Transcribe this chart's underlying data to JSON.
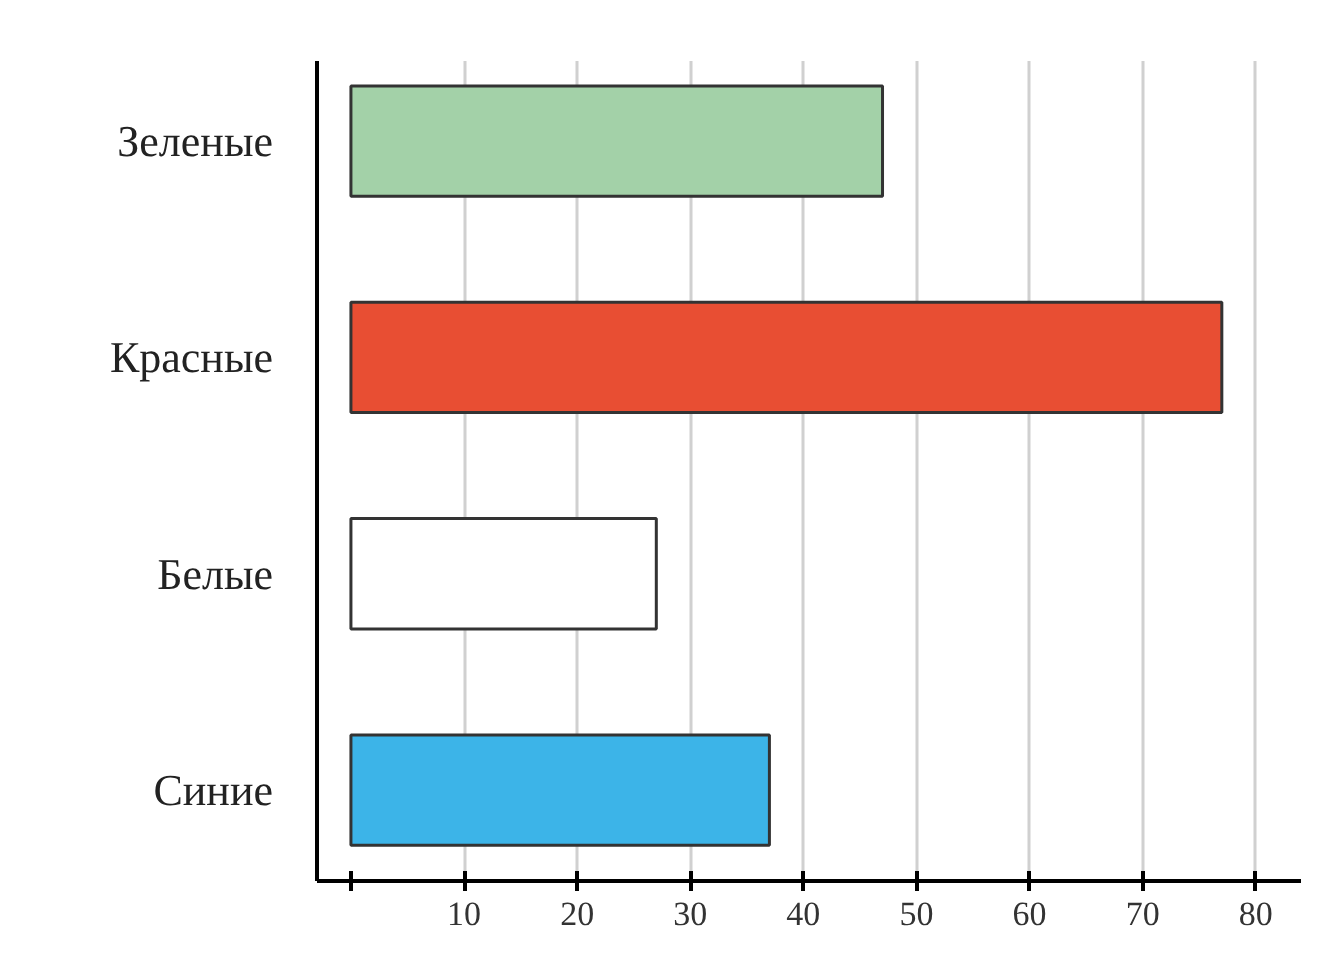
{
  "chart_data": {
    "type": "bar",
    "orientation": "horizontal",
    "categories": [
      "Зеленые",
      "Красные",
      "Белые",
      "Синие"
    ],
    "values": [
      47,
      77,
      27,
      37
    ],
    "colors": [
      "#a3d1a8",
      "#e84e33",
      "#ffffff",
      "#3cb4e8"
    ],
    "xlim": [
      -3,
      84
    ],
    "xticks": [
      {
        "value": 0,
        "label": null
      },
      10,
      20,
      30,
      40,
      50,
      60,
      70,
      80
    ],
    "grid": "x"
  }
}
